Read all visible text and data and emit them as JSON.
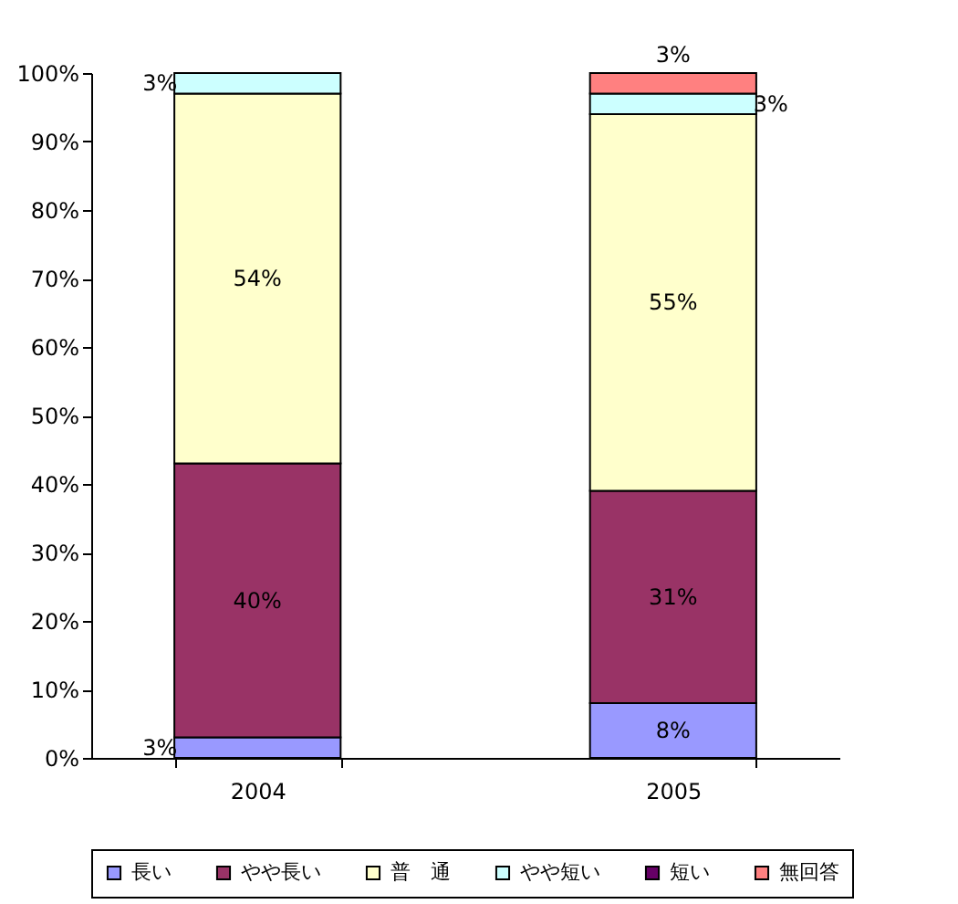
{
  "chart_data": {
    "type": "bar",
    "stacked": true,
    "categories": [
      "2004",
      "2005"
    ],
    "series": [
      {
        "name": "長い",
        "color": "#9999ff",
        "values": [
          3,
          8
        ],
        "value_labels": [
          "3%",
          "8%"
        ]
      },
      {
        "name": "やや長い",
        "color": "#993366",
        "values": [
          40,
          31
        ],
        "value_labels": [
          "40%",
          "31%"
        ]
      },
      {
        "name": "普　通",
        "color": "#ffffcc",
        "values": [
          54,
          55
        ],
        "value_labels": [
          "54%",
          "55%"
        ]
      },
      {
        "name": "やや短い",
        "color": "#ccffff",
        "values": [
          3,
          3
        ],
        "value_labels": [
          "3%",
          "3%"
        ]
      },
      {
        "name": "短い",
        "color": "#660066",
        "values": [
          0,
          0
        ],
        "value_labels": [
          null,
          null
        ]
      },
      {
        "name": "無回答",
        "color": "#ff8080",
        "values": [
          0,
          3
        ],
        "value_labels": [
          null,
          "3%"
        ]
      }
    ],
    "ylim": [
      0,
      100
    ],
    "yticks": [
      {
        "value": 0,
        "label": "0%"
      },
      {
        "value": 10,
        "label": "10%"
      },
      {
        "value": 20,
        "label": "20%"
      },
      {
        "value": 30,
        "label": "30%"
      },
      {
        "value": 40,
        "label": "40%"
      },
      {
        "value": 50,
        "label": "50%"
      },
      {
        "value": 60,
        "label": "60%"
      },
      {
        "value": 70,
        "label": "70%"
      },
      {
        "value": 80,
        "label": "80%"
      },
      {
        "value": 90,
        "label": "90%"
      },
      {
        "value": 100,
        "label": "100%"
      }
    ],
    "grid": false,
    "legend": "bottom"
  }
}
